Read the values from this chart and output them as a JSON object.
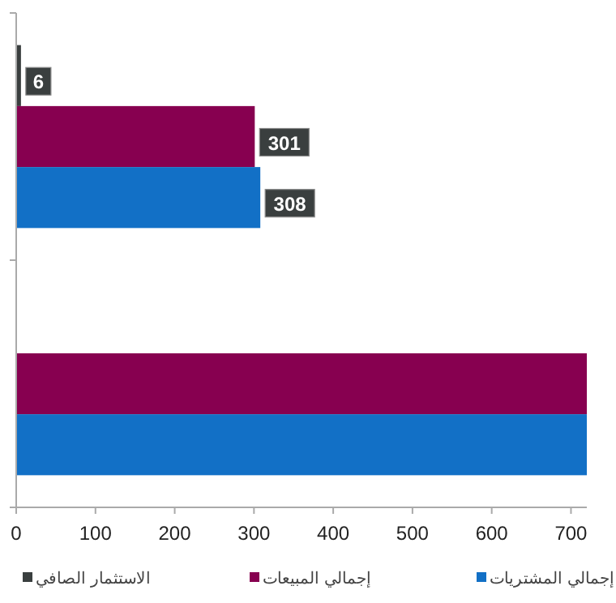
{
  "chart_data": {
    "type": "bar",
    "orientation": "horizontal",
    "categories": [
      null,
      null
    ],
    "series": [
      {
        "name": "الاستثمار الصافي",
        "color": "#3a3f3f",
        "values": [
          6,
          null
        ],
        "value_labels": [
          "6",
          null
        ]
      },
      {
        "name": "إجمالي المبيعات",
        "color": "#870050",
        "values": [
          301,
          720
        ],
        "value_labels": [
          "301",
          null
        ]
      },
      {
        "name": "إجمالي المشتريات",
        "color": "#1270c6",
        "values": [
          308,
          720
        ],
        "value_labels": [
          "308",
          null
        ]
      }
    ],
    "xlim": [
      0,
      720
    ],
    "xticks": [
      0,
      100,
      200,
      300,
      400,
      500,
      600,
      700
    ],
    "grid": false,
    "legend": "bottom"
  }
}
